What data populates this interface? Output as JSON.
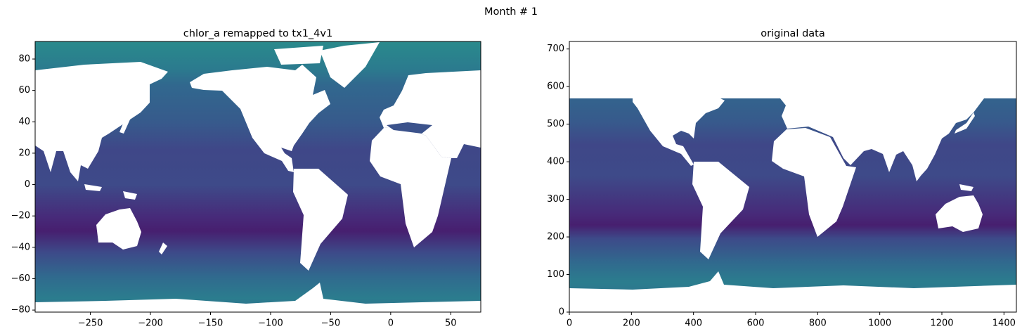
{
  "figure_title": "Month # 1",
  "chart_data": [
    {
      "type": "image",
      "title": "chlor_a remapped to tx1_4v1",
      "xlim": [
        -296,
        75
      ],
      "ylim": [
        -81.3,
        91.2
      ],
      "xticks": [
        {
          "value": -250,
          "label": "−250"
        },
        {
          "value": -200,
          "label": "−200"
        },
        {
          "value": -150,
          "label": "−150"
        },
        {
          "value": -100,
          "label": "−100"
        },
        {
          "value": -50,
          "label": "−50"
        },
        0,
        50
      ],
      "yticks": [
        {
          "value": -80,
          "label": "−80"
        },
        {
          "value": -60,
          "label": "−60"
        },
        {
          "value": -40,
          "label": "−40"
        },
        {
          "value": -20,
          "label": "−20"
        },
        0,
        20,
        40,
        60,
        80
      ]
    },
    {
      "type": "image",
      "title": "original data",
      "xlim": [
        0,
        1440
      ],
      "ylim": [
        0,
        720
      ],
      "xticks": [
        0,
        200,
        400,
        600,
        800,
        1000,
        1200,
        1400
      ],
      "yticks": [
        0,
        100,
        200,
        300,
        400,
        500,
        600,
        700
      ]
    }
  ]
}
